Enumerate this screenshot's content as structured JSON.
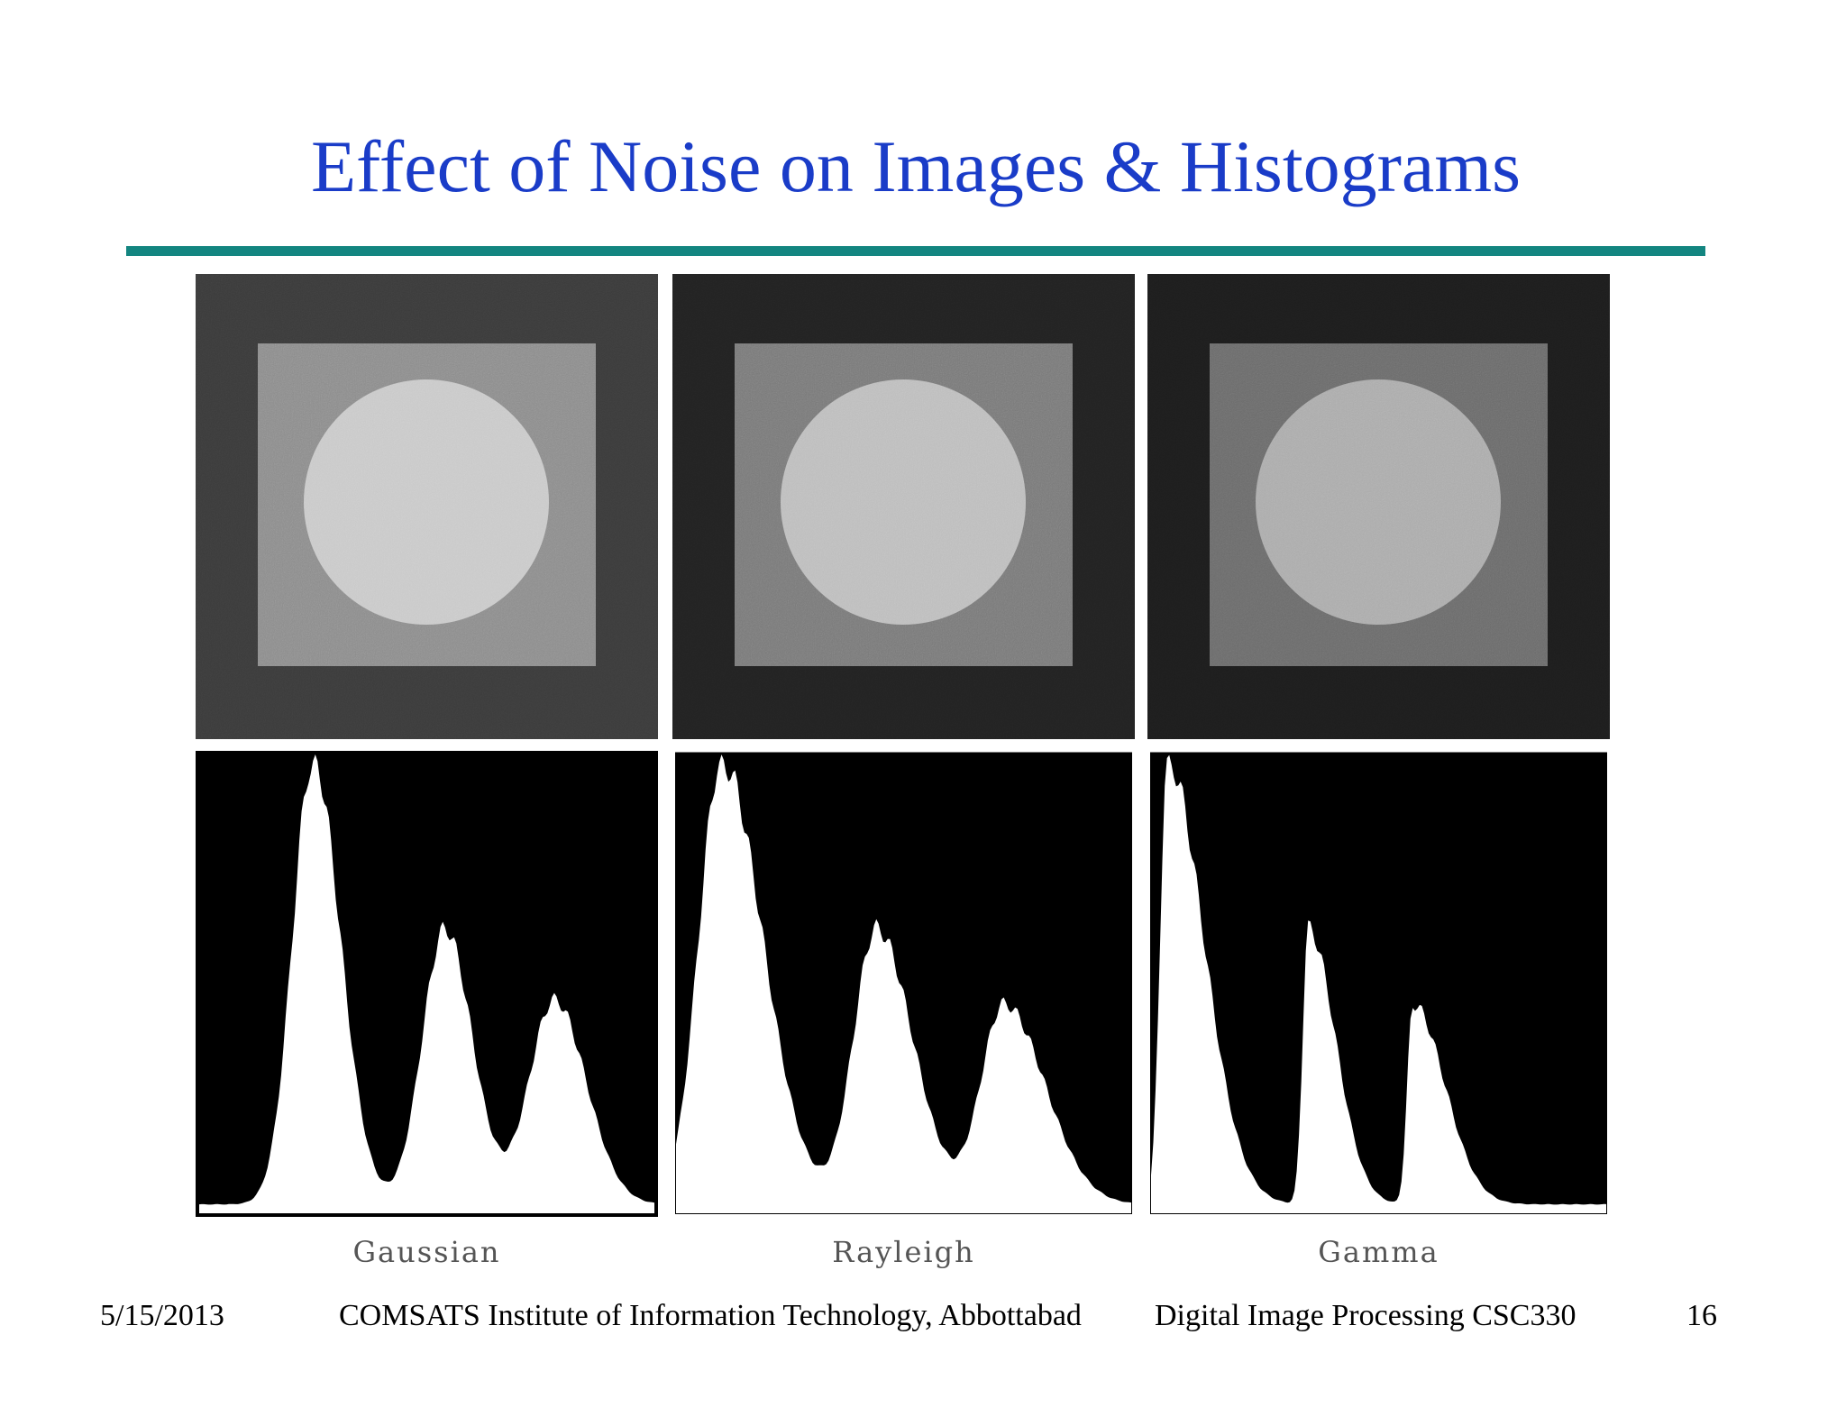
{
  "title": "Effect of Noise on Images & Histograms",
  "panels": [
    {
      "caption": "Gaussian"
    },
    {
      "caption": "Rayleigh"
    },
    {
      "caption": "Gamma"
    }
  ],
  "footer": {
    "date": "5/15/2013",
    "institute": "COMSATS Institute of Information Technology, Abbottabad",
    "course": "Digital Image Processing CSC330",
    "page": "16"
  }
}
